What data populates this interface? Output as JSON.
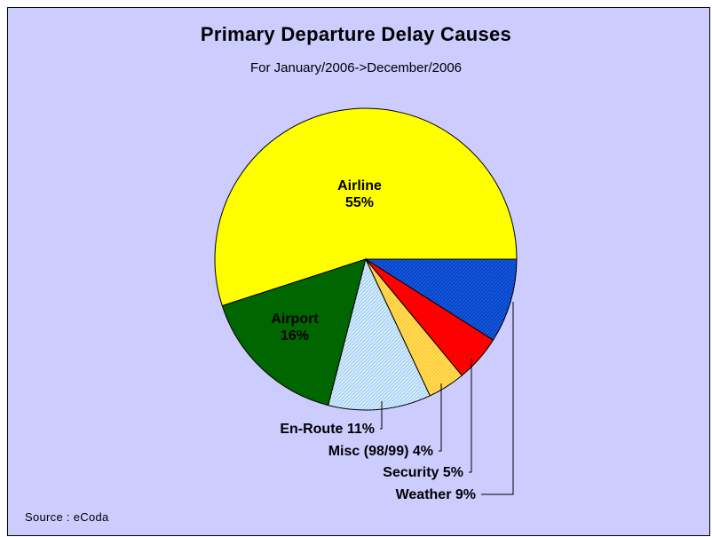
{
  "chart_data": {
    "type": "pie",
    "title": "Primary Departure Delay Causes",
    "subtitle": "For January/2006->December/2006",
    "source": "Source : eCoda",
    "slices": [
      {
        "label": "Airline",
        "value": 55,
        "text": "55%",
        "color": "#ffff00",
        "label_position": "inside"
      },
      {
        "label": "Airport",
        "value": 16,
        "text": "16%",
        "color": "#006600",
        "label_position": "inside"
      },
      {
        "label": "En-Route",
        "value": 11,
        "text": "En-Route 11%",
        "color": "#aad4f6",
        "label_position": "callout"
      },
      {
        "label": "Misc (98/99)",
        "value": 4,
        "text": "Misc (98/99) 4%",
        "color": "#ffcc33",
        "label_position": "callout"
      },
      {
        "label": "Security",
        "value": 5,
        "text": "Security 5%",
        "color": "#ff0000",
        "label_position": "callout"
      },
      {
        "label": "Weather",
        "value": 9,
        "text": "Weather 9%",
        "color": "#0044cc",
        "label_position": "callout"
      }
    ]
  }
}
